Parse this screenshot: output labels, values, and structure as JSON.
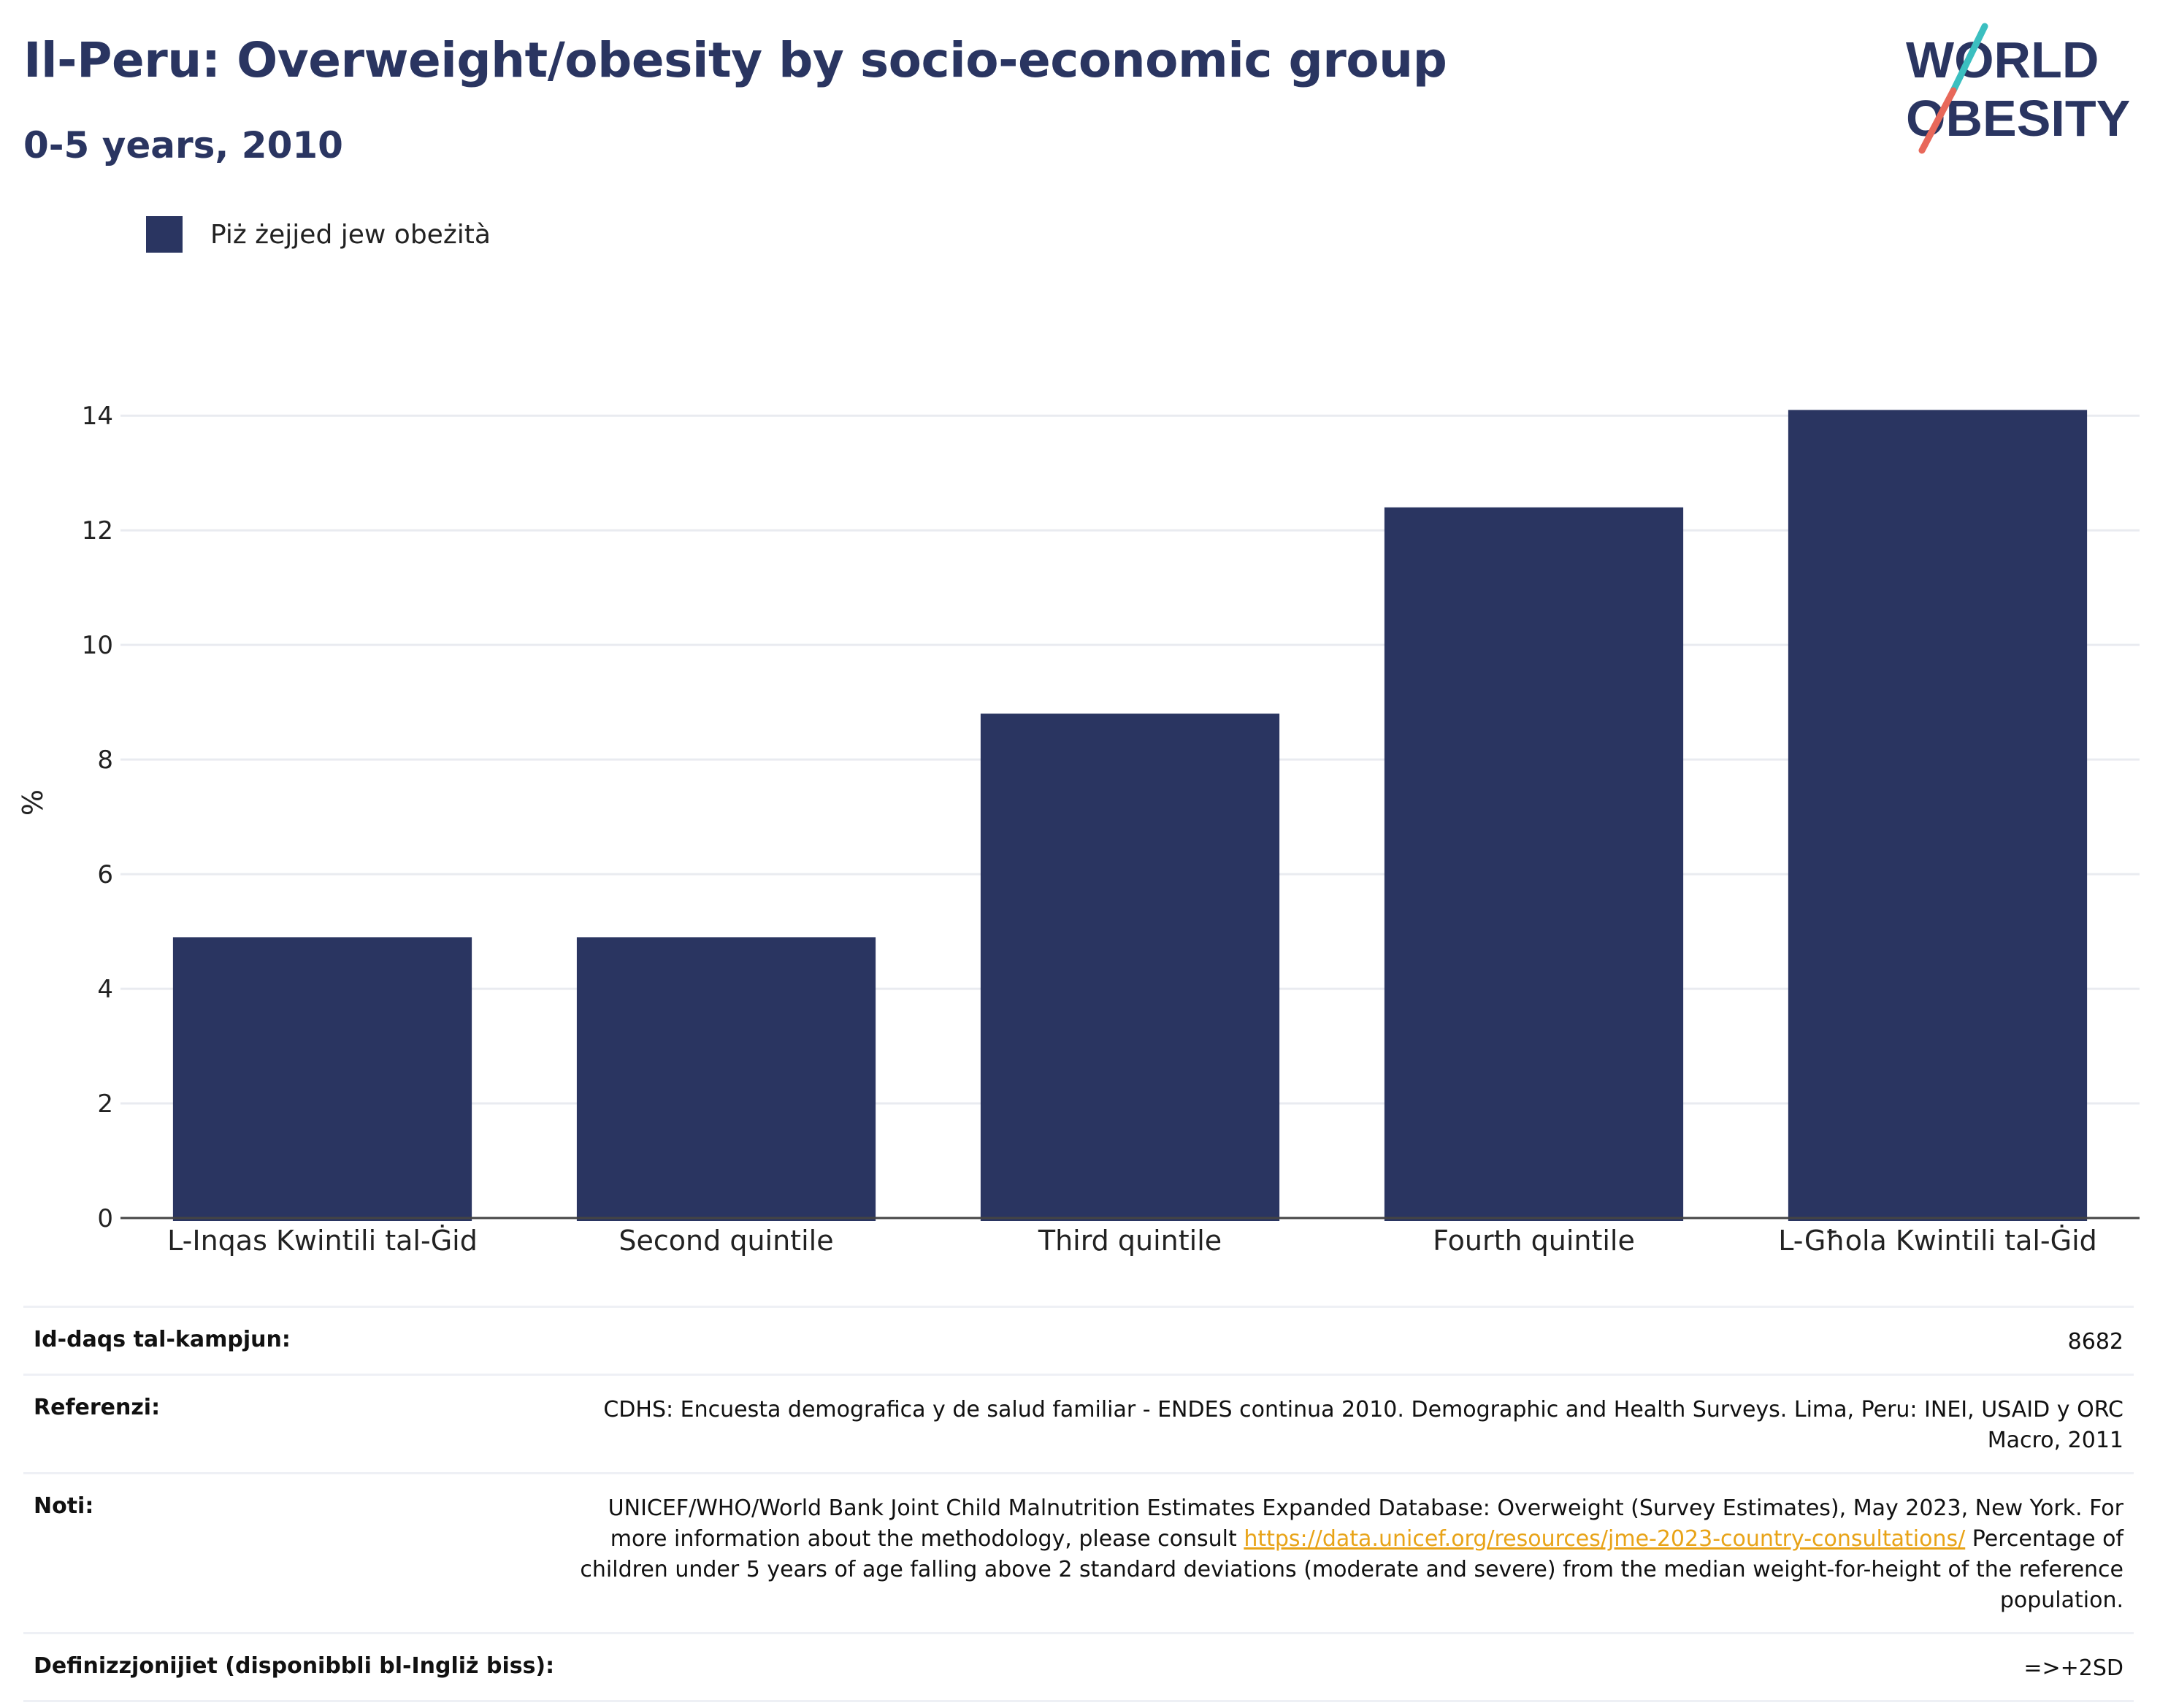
{
  "header": {
    "title": "Il-Peru: Overweight/obesity by socio-economic group",
    "subtitle": "0-5 years, 2010"
  },
  "logo": {
    "line1": "WORLD",
    "line2": "OBESITY",
    "colors": {
      "text": "#2a3561",
      "slash_top": "#3bbfc0",
      "slash_bottom": "#e8685a"
    }
  },
  "legend": {
    "label": "Piż żejjed jew obeżità",
    "color": "#2a3561"
  },
  "chart_data": {
    "type": "bar",
    "categories": [
      "L-Inqas Kwintili tal-Ġid",
      "Second quintile",
      "Third quintile",
      "Fourth quintile",
      "L-Għola Kwintili tal-Ġid"
    ],
    "series": [
      {
        "name": "Piż żejjed jew obeżità",
        "values": [
          4.9,
          4.9,
          8.8,
          12.4,
          14.1
        ],
        "color": "#2a3561"
      }
    ],
    "ylabel": "%",
    "xlabel": "",
    "ylim": [
      0,
      14.5
    ],
    "yticks": [
      0,
      2,
      4,
      6,
      8,
      10,
      12,
      14
    ],
    "grid": true,
    "legend_position": "top-left"
  },
  "meta": {
    "sample_size_label": "Id-daqs tal-kampjun:",
    "sample_size_value": "8682",
    "references_label": "Referenzi:",
    "references_value": "CDHS: Encuesta demografica y de salud familiar - ENDES continua 2010. Demographic and Health Surveys. Lima, Peru: INEI, USAID y ORC Macro, 2011",
    "notes_label": "Noti:",
    "notes_text_before": "UNICEF/WHO/World Bank Joint Child Malnutrition Estimates Expanded Database: Overweight (Survey Estimates), May 2023, New York. For more information about the methodology, please consult ",
    "notes_link": "https://data.unicef.org/resources/jme-2023-country-consultations/",
    "notes_text_after": " Percentage of children under 5 years of age falling above 2 standard deviations (moderate and severe) from the median weight-for-height of the reference population.",
    "definitions_label": "Definizzjonijiet (disponibbli bl-Ingliż biss):",
    "definitions_value": "=>+2SD"
  }
}
